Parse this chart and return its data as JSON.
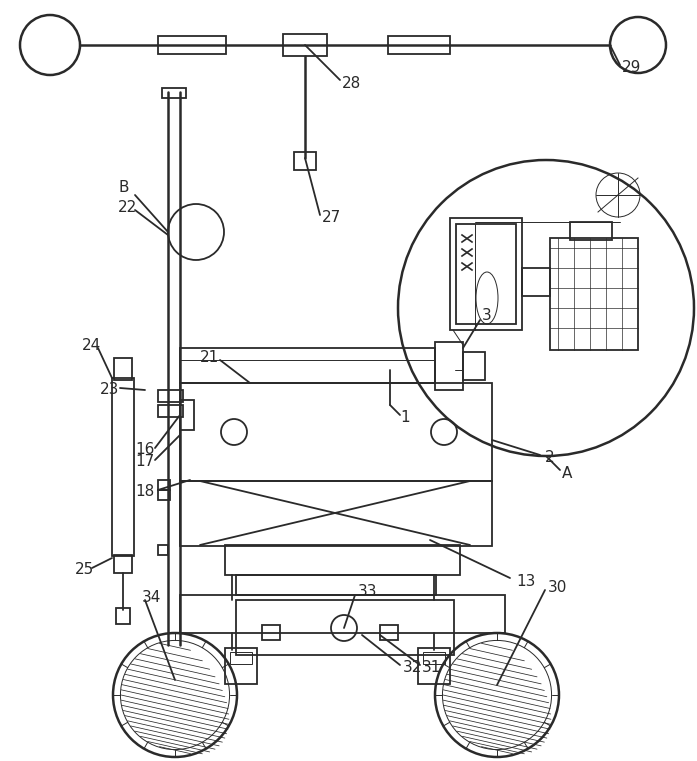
{
  "bg_color": "#ffffff",
  "lc": "#2a2a2a",
  "lw": 1.3,
  "lw_thin": 0.7,
  "lw_thick": 1.8,
  "fig_w": 6.97,
  "fig_h": 7.61
}
